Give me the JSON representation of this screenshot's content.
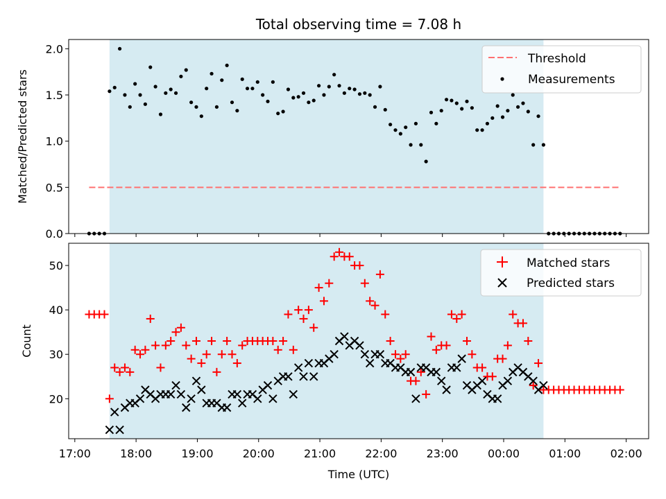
{
  "chart_data": [
    {
      "type": "scatter",
      "title": "Total observing time = 7.08 h",
      "ylabel": "Matched/Predicted stars",
      "xlabel": "",
      "xlim": [
        "16:54",
        "02:22"
      ],
      "ylim": [
        0,
        2.1
      ],
      "yticks": [
        0.0,
        0.5,
        1.0,
        1.5,
        2.0
      ],
      "ytick_labels": [
        "0.0",
        "0.5",
        "1.0",
        "1.5",
        "2.0"
      ],
      "shaded_span": {
        "start": "17:34",
        "end": "00:39",
        "color": "#add8e6"
      },
      "legend_position": "upper right",
      "colors": {
        "threshold": "#ff7070",
        "measurements": "#000000"
      },
      "threshold": {
        "name": "Threshold",
        "value": 0.5,
        "x_range": [
          "17:14",
          "01:54"
        ],
        "style": "dashed"
      },
      "series": [
        {
          "name": "Measurements",
          "x": [
            "17:14",
            "17:19",
            "17:24",
            "17:29",
            "17:34",
            "17:39",
            "17:44",
            "17:49",
            "17:54",
            "17:59",
            "18:04",
            "18:09",
            "18:14",
            "18:19",
            "18:24",
            "18:29",
            "18:34",
            "18:39",
            "18:44",
            "18:49",
            "18:54",
            "18:59",
            "19:04",
            "19:09",
            "19:14",
            "19:19",
            "19:24",
            "19:29",
            "19:34",
            "19:39",
            "19:44",
            "19:49",
            "19:54",
            "19:59",
            "20:04",
            "20:09",
            "20:14",
            "20:19",
            "20:24",
            "20:29",
            "20:34",
            "20:39",
            "20:44",
            "20:49",
            "20:54",
            "20:59",
            "21:04",
            "21:09",
            "21:14",
            "21:19",
            "21:24",
            "21:29",
            "21:34",
            "21:39",
            "21:44",
            "21:49",
            "21:54",
            "21:59",
            "22:04",
            "22:09",
            "22:14",
            "22:19",
            "22:24",
            "22:29",
            "22:34",
            "22:39",
            "22:44",
            "22:49",
            "22:54",
            "22:59",
            "23:04",
            "23:09",
            "23:14",
            "23:19",
            "23:24",
            "23:29",
            "23:34",
            "23:39",
            "23:44",
            "23:49",
            "23:54",
            "23:59",
            "00:04",
            "00:09",
            "00:14",
            "00:19",
            "00:24",
            "00:29",
            "00:34",
            "00:39",
            "00:44",
            "00:49",
            "00:54",
            "00:59",
            "01:04",
            "01:09",
            "01:14",
            "01:19",
            "01:24",
            "01:29",
            "01:34",
            "01:39",
            "01:44",
            "01:49",
            "01:54"
          ],
          "y": [
            0,
            0,
            0,
            0,
            1.54,
            1.58,
            2.0,
            1.5,
            1.37,
            1.62,
            1.5,
            1.4,
            1.8,
            1.59,
            1.29,
            1.52,
            1.56,
            1.52,
            1.7,
            1.77,
            1.42,
            1.37,
            1.27,
            1.57,
            1.73,
            1.37,
            1.66,
            1.82,
            1.42,
            1.33,
            1.67,
            1.57,
            1.57,
            1.64,
            1.5,
            1.43,
            1.64,
            1.3,
            1.32,
            1.56,
            1.47,
            1.48,
            1.52,
            1.42,
            1.44,
            1.6,
            1.5,
            1.59,
            1.72,
            1.6,
            1.52,
            1.57,
            1.56,
            1.51,
            1.52,
            1.5,
            1.37,
            1.59,
            1.34,
            1.18,
            1.12,
            1.08,
            1.15,
            0.96,
            1.19,
            0.96,
            0.78,
            1.31,
            1.19,
            1.33,
            1.45,
            1.44,
            1.41,
            1.35,
            1.43,
            1.36,
            1.12,
            1.12,
            1.19,
            1.25,
            1.38,
            1.26,
            1.33,
            1.5,
            1.37,
            1.41,
            1.32,
            0.96,
            1.27,
            0.96,
            0,
            0,
            0,
            0,
            0,
            0,
            0,
            0,
            0,
            0,
            0,
            0,
            0,
            0,
            0
          ]
        }
      ]
    },
    {
      "type": "scatter",
      "title": "",
      "ylabel": "Count",
      "xlabel": "Time (UTC)",
      "xlim": [
        "16:54",
        "02:22"
      ],
      "ylim": [
        11,
        55
      ],
      "yticks": [
        20,
        30,
        40,
        50
      ],
      "xticks": [
        "17:00",
        "18:00",
        "19:00",
        "20:00",
        "21:00",
        "22:00",
        "23:00",
        "00:00",
        "01:00",
        "02:00"
      ],
      "shaded_span": {
        "start": "17:34",
        "end": "00:39",
        "color": "#add8e6"
      },
      "legend_position": "upper right",
      "colors": {
        "matched": "#ff0000",
        "predicted": "#000000"
      },
      "series": [
        {
          "name": "Matched stars",
          "marker": "+",
          "x": [
            "17:14",
            "17:19",
            "17:24",
            "17:29",
            "17:34",
            "17:39",
            "17:44",
            "17:49",
            "17:54",
            "17:59",
            "18:04",
            "18:09",
            "18:14",
            "18:19",
            "18:24",
            "18:29",
            "18:34",
            "18:39",
            "18:44",
            "18:49",
            "18:54",
            "18:59",
            "19:04",
            "19:09",
            "19:14",
            "19:19",
            "19:24",
            "19:29",
            "19:34",
            "19:39",
            "19:44",
            "19:49",
            "19:54",
            "19:59",
            "20:04",
            "20:09",
            "20:14",
            "20:19",
            "20:24",
            "20:29",
            "20:34",
            "20:39",
            "20:44",
            "20:49",
            "20:54",
            "20:59",
            "21:04",
            "21:09",
            "21:14",
            "21:19",
            "21:24",
            "21:29",
            "21:34",
            "21:39",
            "21:44",
            "21:49",
            "21:54",
            "21:59",
            "22:04",
            "22:09",
            "22:14",
            "22:19",
            "22:24",
            "22:29",
            "22:34",
            "22:39",
            "22:44",
            "22:49",
            "22:54",
            "22:59",
            "23:04",
            "23:09",
            "23:14",
            "23:19",
            "23:24",
            "23:29",
            "23:34",
            "23:39",
            "23:44",
            "23:49",
            "23:54",
            "23:59",
            "00:04",
            "00:09",
            "00:14",
            "00:19",
            "00:24",
            "00:29",
            "00:34",
            "00:39",
            "00:44",
            "00:49",
            "00:54",
            "00:59",
            "01:04",
            "01:09",
            "01:14",
            "01:19",
            "01:24",
            "01:29",
            "01:34",
            "01:39",
            "01:44",
            "01:49",
            "01:54"
          ],
          "y": [
            39,
            39,
            39,
            39,
            20,
            27,
            26,
            27,
            26,
            31,
            30,
            31,
            38,
            32,
            27,
            32,
            33,
            35,
            36,
            32,
            29,
            33,
            28,
            30,
            33,
            26,
            30,
            33,
            30,
            28,
            32,
            33,
            33,
            33,
            33,
            33,
            33,
            31,
            33,
            39,
            31,
            40,
            38,
            40,
            36,
            45,
            42,
            46,
            52,
            53,
            52,
            52,
            50,
            50,
            46,
            42,
            41,
            48,
            39,
            33,
            30,
            29,
            30,
            24,
            24,
            26,
            21,
            34,
            31,
            32,
            32,
            39,
            38,
            39,
            33,
            30,
            27,
            27,
            25,
            25,
            29,
            29,
            32,
            39,
            37,
            37,
            33,
            23,
            28,
            22,
            22,
            22,
            22,
            22,
            22,
            22,
            22,
            22,
            22,
            22,
            22,
            22,
            22,
            22,
            22
          ]
        },
        {
          "name": "Predicted stars",
          "marker": "x",
          "x": [
            "17:34",
            "17:39",
            "17:44",
            "17:49",
            "17:54",
            "17:59",
            "18:04",
            "18:09",
            "18:14",
            "18:19",
            "18:24",
            "18:29",
            "18:34",
            "18:39",
            "18:44",
            "18:49",
            "18:54",
            "18:59",
            "19:04",
            "19:09",
            "19:14",
            "19:19",
            "19:24",
            "19:29",
            "19:34",
            "19:39",
            "19:44",
            "19:49",
            "19:54",
            "19:59",
            "20:04",
            "20:09",
            "20:14",
            "20:19",
            "20:24",
            "20:29",
            "20:34",
            "20:39",
            "20:44",
            "20:49",
            "20:54",
            "20:59",
            "21:04",
            "21:09",
            "21:14",
            "21:19",
            "21:24",
            "21:29",
            "21:34",
            "21:39",
            "21:44",
            "21:49",
            "21:54",
            "21:59",
            "22:04",
            "22:09",
            "22:14",
            "22:19",
            "22:24",
            "22:29",
            "22:34",
            "22:39",
            "22:44",
            "22:49",
            "22:54",
            "22:59",
            "23:04",
            "23:09",
            "23:14",
            "23:19",
            "23:24",
            "23:29",
            "23:34",
            "23:39",
            "23:44",
            "23:49",
            "23:54",
            "23:59",
            "00:04",
            "00:09",
            "00:14",
            "00:19",
            "00:24",
            "00:29",
            "00:34",
            "00:39"
          ],
          "y": [
            13,
            17,
            13,
            18,
            19,
            19,
            20,
            22,
            21,
            20,
            21,
            21,
            21,
            23,
            21,
            18,
            20,
            24,
            22,
            19,
            19,
            19,
            18,
            18,
            21,
            21,
            19,
            21,
            21,
            20,
            22,
            23,
            20,
            24,
            25,
            25,
            21,
            27,
            25,
            28,
            25,
            28,
            28,
            29,
            30,
            33,
            34,
            32,
            33,
            32,
            30,
            28,
            30,
            30,
            28,
            28,
            27,
            27,
            26,
            26,
            20,
            27,
            27,
            26,
            26,
            24,
            22,
            27,
            27,
            29,
            23,
            22,
            23,
            24,
            21,
            20,
            20,
            23,
            24,
            26,
            27,
            26,
            25,
            24,
            22,
            23
          ]
        }
      ]
    }
  ]
}
